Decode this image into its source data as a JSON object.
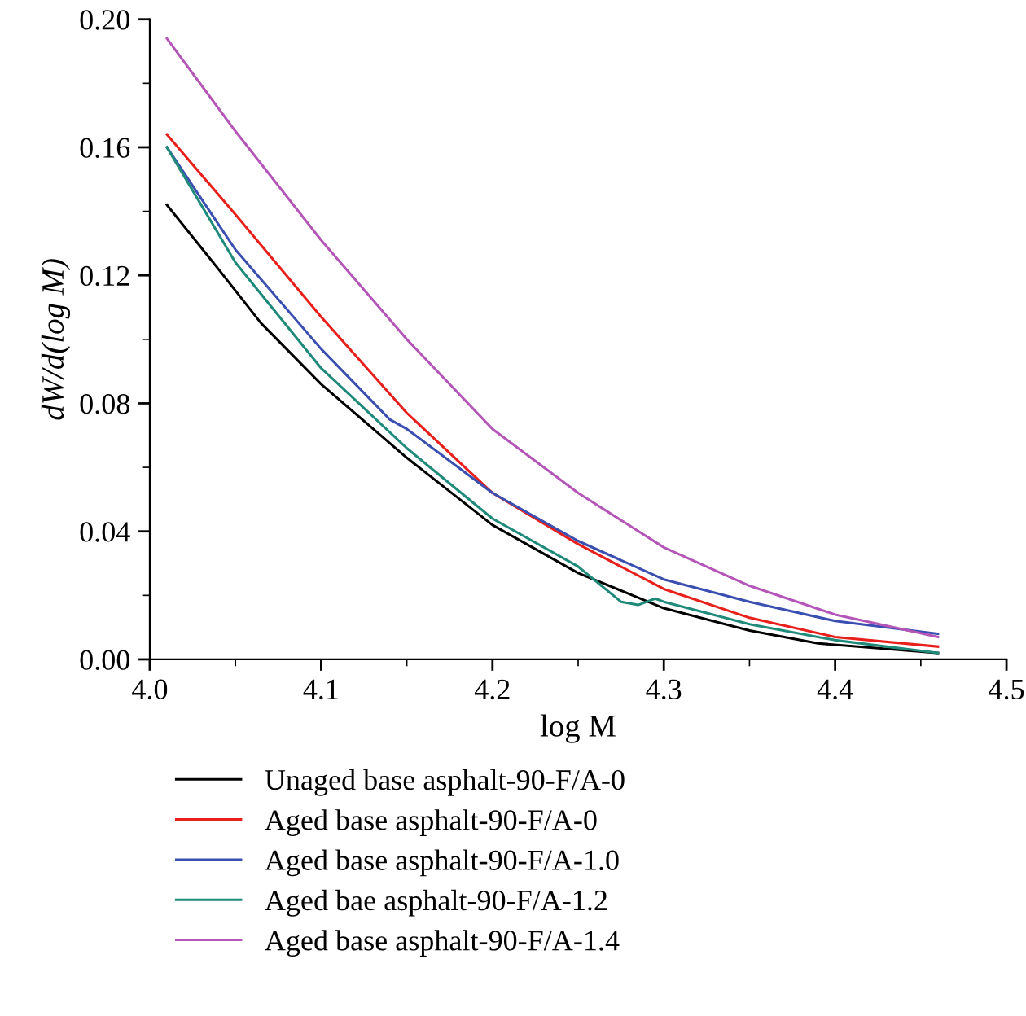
{
  "chart_data": {
    "type": "line",
    "xlabel": "log M",
    "ylabel": "dW/d(log M)",
    "xlim": [
      4.0,
      4.5
    ],
    "xticks": [
      {
        "value": 4.0,
        "label": "4.0"
      },
      4.1,
      4.2,
      4.3,
      4.4,
      {
        "value": 4.5,
        "label": "4.5"
      }
    ],
    "ylim": [
      0.0,
      0.2
    ],
    "yticks": [
      {
        "value": 0.0,
        "label": "0.00"
      },
      {
        "value": 0.04,
        "label": "0.04"
      },
      {
        "value": 0.08,
        "label": "0.08"
      },
      {
        "value": 0.12,
        "label": "0.12"
      },
      {
        "value": 0.16,
        "label": "0.16"
      },
      {
        "value": 0.2,
        "label": "0.20"
      }
    ],
    "grid": false,
    "legend": "bottom",
    "marker": "none",
    "line_style": "solid",
    "series": [
      {
        "name": "Unaged base asphalt-90-F/A-0",
        "color": "#000000",
        "x": [
          4.01,
          4.04,
          4.065,
          4.1,
          4.15,
          4.2,
          4.25,
          4.3,
          4.35,
          4.39,
          4.46
        ],
        "values": [
          0.142,
          0.122,
          0.105,
          0.086,
          0.063,
          0.042,
          0.027,
          0.016,
          0.009,
          0.005,
          0.002
        ]
      },
      {
        "name": "Aged base asphalt-90-F/A-0",
        "color": "#e8201c",
        "x": [
          4.01,
          4.05,
          4.1,
          4.15,
          4.2,
          4.25,
          4.3,
          4.35,
          4.4,
          4.46
        ],
        "values": [
          0.164,
          0.139,
          0.107,
          0.077,
          0.052,
          0.036,
          0.022,
          0.013,
          0.007,
          0.004
        ]
      },
      {
        "name": "Aged base asphalt-90-F/A-1.0",
        "color": "#3a4fb0",
        "x": [
          4.01,
          4.05,
          4.1,
          4.14,
          4.15,
          4.2,
          4.25,
          4.3,
          4.35,
          4.4,
          4.46
        ],
        "values": [
          0.16,
          0.128,
          0.097,
          0.075,
          0.072,
          0.052,
          0.037,
          0.025,
          0.018,
          0.012,
          0.008
        ]
      },
      {
        "name": "Aged bae asphalt-90-F/A-1.2",
        "color": "#1f8a7a",
        "x": [
          4.01,
          4.05,
          4.1,
          4.15,
          4.2,
          4.25,
          4.275,
          4.285,
          4.295,
          4.3,
          4.35,
          4.4,
          4.46
        ],
        "values": [
          0.16,
          0.124,
          0.091,
          0.066,
          0.044,
          0.029,
          0.018,
          0.017,
          0.019,
          0.018,
          0.011,
          0.006,
          0.002
        ]
      },
      {
        "name": "Aged base asphalt-90-F/A-1.4",
        "color": "#b455b8",
        "x": [
          4.01,
          4.05,
          4.1,
          4.15,
          4.2,
          4.25,
          4.3,
          4.35,
          4.4,
          4.46
        ],
        "values": [
          0.194,
          0.165,
          0.131,
          0.1,
          0.072,
          0.052,
          0.035,
          0.023,
          0.014,
          0.007
        ]
      }
    ]
  }
}
